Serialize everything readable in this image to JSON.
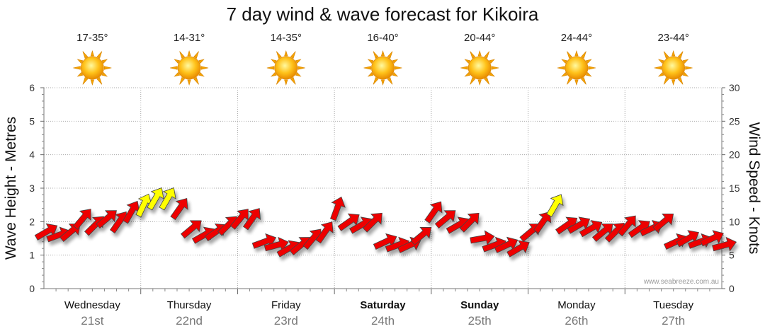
{
  "header": {
    "title": "7 day wind & wave forecast for Kikoira"
  },
  "watermark": "www.seabreeze.com.au",
  "colors": {
    "strong": "#ee0000",
    "moderate": "#ffff00",
    "outline": "#444444"
  },
  "chart_data": {
    "type": "line",
    "title": "7 day wind & wave forecast for Kikoira",
    "y_left": {
      "label": "Wave Height - Metres",
      "range": [
        0,
        6
      ],
      "ticks": [
        "0",
        "1",
        "2",
        "3",
        "4",
        "5",
        "6"
      ]
    },
    "y_right": {
      "label": "Wind Speed - Knots",
      "range": [
        0,
        30
      ],
      "ticks": [
        "0",
        "5",
        "10",
        "15",
        "20",
        "25",
        "30"
      ]
    },
    "grid": true,
    "days": [
      {
        "name": "Wednesday",
        "date": "21st",
        "temp": "17-35°",
        "icon": "sun-icon",
        "bold": false
      },
      {
        "name": "Thursday",
        "date": "22nd",
        "temp": "14-31°",
        "icon": "sun-icon",
        "bold": false
      },
      {
        "name": "Friday",
        "date": "23rd",
        "temp": "14-35°",
        "icon": "sun-icon",
        "bold": false
      },
      {
        "name": "Saturday",
        "date": "24th",
        "temp": "16-40°",
        "icon": "sun-icon",
        "bold": true
      },
      {
        "name": "Sunday",
        "date": "25th",
        "temp": "20-44°",
        "icon": "sun-icon",
        "bold": true
      },
      {
        "name": "Monday",
        "date": "26th",
        "temp": "24-44°",
        "icon": "sun-icon",
        "bold": false
      },
      {
        "name": "Tuesday",
        "date": "27th",
        "temp": "23-44°",
        "icon": "sun-icon",
        "bold": false
      }
    ],
    "wind_series": {
      "name": "Wind",
      "x_hours_from_start": [
        0,
        3,
        6,
        9,
        12,
        15,
        18,
        21,
        24,
        27,
        30,
        33,
        36,
        39,
        42,
        45,
        48,
        51,
        54,
        57,
        60,
        63,
        66,
        69,
        72,
        75,
        78,
        81,
        84,
        87,
        90,
        93,
        96,
        99,
        102,
        105,
        108,
        111,
        114,
        117,
        120,
        123,
        126,
        129,
        132,
        135,
        138,
        141,
        144,
        147,
        150,
        153,
        156,
        159,
        162,
        165,
        168
      ],
      "speed_knots": [
        8.5,
        8.0,
        8.5,
        10.5,
        9.5,
        10.5,
        10.0,
        11.5,
        12.5,
        13.5,
        13.5,
        12.0,
        9.0,
        8.0,
        8.5,
        9.5,
        10.5,
        10.5,
        7.0,
        6.5,
        6.0,
        6.5,
        7.5,
        8.5,
        12.0,
        10.0,
        9.5,
        10.0,
        7.0,
        6.5,
        6.5,
        8.0,
        11.5,
        10.5,
        9.5,
        10.0,
        7.5,
        6.5,
        6.5,
        6.0,
        8.5,
        10.0,
        12.5,
        9.5,
        9.5,
        9.0,
        8.5,
        8.5,
        9.5,
        9.0,
        9.0,
        10.0,
        7.0,
        7.5,
        7.0,
        7.5,
        6.5
      ],
      "direction_deg": [
        240,
        250,
        230,
        220,
        225,
        230,
        215,
        210,
        205,
        210,
        210,
        215,
        230,
        240,
        235,
        225,
        220,
        215,
        250,
        255,
        240,
        230,
        220,
        215,
        200,
        235,
        240,
        225,
        245,
        250,
        245,
        230,
        215,
        230,
        240,
        225,
        260,
        250,
        245,
        240,
        230,
        215,
        210,
        235,
        240,
        240,
        230,
        225,
        220,
        235,
        245,
        230,
        245,
        240,
        250,
        245,
        255
      ]
    }
  }
}
